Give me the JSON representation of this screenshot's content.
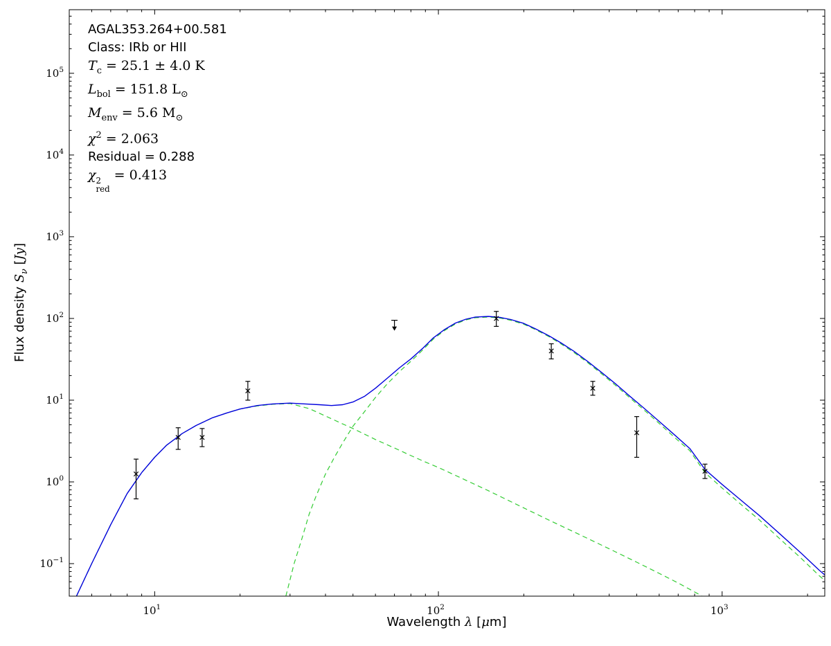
{
  "figure": {
    "background": "#ffffff"
  },
  "info": {
    "source": "AGAL353.264+00.581",
    "class_line": "Class: IRb or HII",
    "tc": {
      "sym": "T",
      "sub": "c",
      "rest": " = 25.1 ± 4.0 K"
    },
    "lbol": {
      "sym": "L",
      "sub": "bol",
      "mid": " = 151.8 ",
      "unit": "L",
      "unit_sub": "⊙"
    },
    "menv": {
      "sym": "M",
      "sub": "env",
      "mid": " = 5.6 ",
      "unit": "M",
      "unit_sub": "⊙"
    },
    "chi2": {
      "sym": "χ",
      "sup": "2",
      "rest": " = 2.063"
    },
    "residual": "Residual = 0.288",
    "chi2red": {
      "sym": "χ",
      "sup": "2",
      "sub": "red",
      "rest": " = 0.413"
    }
  },
  "axis": {
    "xlabel": {
      "pre": "Wavelength ",
      "sym": "λ",
      "open": " [",
      "unit_sym": "μ",
      "unit_rest": "m]"
    },
    "ylabel": {
      "pre": "Flux density ",
      "sym": "S",
      "sym_sub": "ν",
      "open": " [",
      "unit_i": "Jy",
      "close": "]"
    }
  },
  "chart_data": {
    "type": "line",
    "title": "",
    "x_scale": "log",
    "y_scale": "log",
    "xlabel": "Wavelength λ [μm]",
    "ylabel": "Flux density Sν [Jy]",
    "xlim": [
      5,
      2300
    ],
    "ylim": [
      0.04,
      600000
    ],
    "x_major_ticks": [
      10,
      100,
      1000
    ],
    "y_major_ticks": [
      0.1,
      1,
      10,
      100,
      1000,
      10000,
      100000
    ],
    "grid": false,
    "legend": "none",
    "annotations": [
      "AGAL353.264+00.581",
      "Class: IRb or HII",
      "Tc = 25.1 ± 4.0 K",
      "Lbol = 151.8 L⊙",
      "Menv = 5.6 M⊙",
      "χ2 = 2.063",
      "Residual = 0.288",
      "χ2red = 0.413"
    ],
    "series": [
      {
        "name": "warm-component",
        "style": "dashed",
        "color": "#33cc33",
        "width": 1.2,
        "points": [
          [
            5.3,
            0.04
          ],
          [
            6,
            0.1
          ],
          [
            7,
            0.3
          ],
          [
            8,
            0.72
          ],
          [
            9,
            1.3
          ],
          [
            10,
            2.0
          ],
          [
            11,
            2.8
          ],
          [
            12.5,
            3.9
          ],
          [
            14,
            4.9
          ],
          [
            16,
            6.1
          ],
          [
            18,
            7.0
          ],
          [
            20,
            7.8
          ],
          [
            23,
            8.5
          ],
          [
            26,
            8.9
          ],
          [
            30,
            9.1
          ],
          [
            35,
            7.9
          ],
          [
            40,
            6.4
          ],
          [
            45,
            5.3
          ],
          [
            50,
            4.5
          ],
          [
            60,
            3.3
          ],
          [
            70,
            2.6
          ],
          [
            80,
            2.1
          ],
          [
            90,
            1.75
          ],
          [
            100,
            1.5
          ],
          [
            120,
            1.12
          ],
          [
            150,
            0.78
          ],
          [
            200,
            0.48
          ],
          [
            250,
            0.33
          ],
          [
            300,
            0.245
          ],
          [
            400,
            0.152
          ],
          [
            500,
            0.104
          ],
          [
            600,
            0.076
          ],
          [
            700,
            0.058
          ],
          [
            830,
            0.042
          ],
          [
            900,
            0.035
          ]
        ]
      },
      {
        "name": "cold-component",
        "style": "dashed",
        "color": "#33cc33",
        "width": 1.2,
        "points": [
          [
            29,
            0.04
          ],
          [
            31,
            0.1
          ],
          [
            33,
            0.2
          ],
          [
            35,
            0.4
          ],
          [
            37,
            0.66
          ],
          [
            40,
            1.25
          ],
          [
            43,
            2.0
          ],
          [
            46,
            3.0
          ],
          [
            50,
            4.8
          ],
          [
            55,
            7.3
          ],
          [
            60,
            10.8
          ],
          [
            66,
            15.8
          ],
          [
            73,
            22.5
          ],
          [
            80,
            30
          ],
          [
            88,
            41
          ],
          [
            96,
            56
          ],
          [
            105,
            71
          ],
          [
            115,
            86
          ],
          [
            125,
            96
          ],
          [
            135,
            102
          ],
          [
            150,
            104
          ],
          [
            165,
            101
          ],
          [
            180,
            95
          ],
          [
            200,
            85
          ],
          [
            220,
            73
          ],
          [
            245,
            60
          ],
          [
            270,
            49
          ],
          [
            300,
            38.5
          ],
          [
            335,
            29
          ],
          [
            375,
            21.2
          ],
          [
            420,
            15.3
          ],
          [
            470,
            10.9
          ],
          [
            530,
            7.6
          ],
          [
            600,
            5.2
          ],
          [
            680,
            3.5
          ],
          [
            770,
            2.4
          ],
          [
            870,
            1.3
          ],
          [
            1000,
            0.84
          ],
          [
            1150,
            0.55
          ],
          [
            1350,
            0.345
          ],
          [
            1600,
            0.2
          ],
          [
            1900,
            0.116
          ],
          [
            2200,
            0.071
          ],
          [
            2400,
            0.055
          ]
        ]
      },
      {
        "name": "total-model",
        "style": "solid",
        "color": "#0000dd",
        "width": 1.4,
        "points": [
          [
            5.3,
            0.04
          ],
          [
            6,
            0.1
          ],
          [
            7,
            0.3
          ],
          [
            8,
            0.72
          ],
          [
            9,
            1.3
          ],
          [
            10,
            2.0
          ],
          [
            11,
            2.8
          ],
          [
            12.5,
            3.9
          ],
          [
            14,
            4.9
          ],
          [
            16,
            6.1
          ],
          [
            18,
            7.0
          ],
          [
            20,
            7.8
          ],
          [
            23,
            8.6
          ],
          [
            26,
            9.0
          ],
          [
            30,
            9.2
          ],
          [
            34,
            9.0
          ],
          [
            38,
            8.8
          ],
          [
            42,
            8.6
          ],
          [
            46,
            8.8
          ],
          [
            50,
            9.5
          ],
          [
            55,
            11.2
          ],
          [
            60,
            14
          ],
          [
            66,
            18.5
          ],
          [
            73,
            25
          ],
          [
            80,
            32
          ],
          [
            88,
            43
          ],
          [
            96,
            58
          ],
          [
            105,
            73
          ],
          [
            115,
            88
          ],
          [
            125,
            98
          ],
          [
            135,
            104
          ],
          [
            150,
            106
          ],
          [
            165,
            103
          ],
          [
            180,
            97
          ],
          [
            200,
            87
          ],
          [
            220,
            74.5
          ],
          [
            245,
            61.5
          ],
          [
            270,
            50.5
          ],
          [
            300,
            39.8
          ],
          [
            335,
            30
          ],
          [
            375,
            22
          ],
          [
            420,
            16
          ],
          [
            470,
            11.4
          ],
          [
            530,
            8.0
          ],
          [
            600,
            5.5
          ],
          [
            680,
            3.75
          ],
          [
            770,
            2.55
          ],
          [
            870,
            1.42
          ],
          [
            1000,
            0.93
          ],
          [
            1150,
            0.62
          ],
          [
            1350,
            0.39
          ],
          [
            1600,
            0.23
          ],
          [
            1900,
            0.134
          ],
          [
            2200,
            0.083
          ],
          [
            2400,
            0.064
          ]
        ]
      }
    ],
    "data_points": [
      {
        "wavelength_um": 8.6,
        "flux_jy": 1.25,
        "err_lo": 0.62,
        "err_hi": 1.9
      },
      {
        "wavelength_um": 12.1,
        "flux_jy": 3.5,
        "err_lo": 2.5,
        "err_hi": 4.6
      },
      {
        "wavelength_um": 14.7,
        "flux_jy": 3.5,
        "err_lo": 2.7,
        "err_hi": 4.5
      },
      {
        "wavelength_um": 21.3,
        "flux_jy": 13.0,
        "err_lo": 10.0,
        "err_hi": 17.0
      },
      {
        "wavelength_um": 70,
        "flux_jy": 95,
        "upper_limit": true
      },
      {
        "wavelength_um": 160,
        "flux_jy": 100,
        "err_lo": 80,
        "err_hi": 122
      },
      {
        "wavelength_um": 250,
        "flux_jy": 40,
        "err_lo": 32,
        "err_hi": 49
      },
      {
        "wavelength_um": 350,
        "flux_jy": 14,
        "err_lo": 11.5,
        "err_hi": 17
      },
      {
        "wavelength_um": 500,
        "flux_jy": 4.0,
        "err_lo": 2.0,
        "err_hi": 6.3
      },
      {
        "wavelength_um": 870,
        "flux_jy": 1.35,
        "err_lo": 1.1,
        "err_hi": 1.65
      }
    ],
    "colors": {
      "model_total": "#0000dd",
      "model_components": "#33cc33",
      "data_points": "#000000",
      "frame": "#000000"
    }
  }
}
